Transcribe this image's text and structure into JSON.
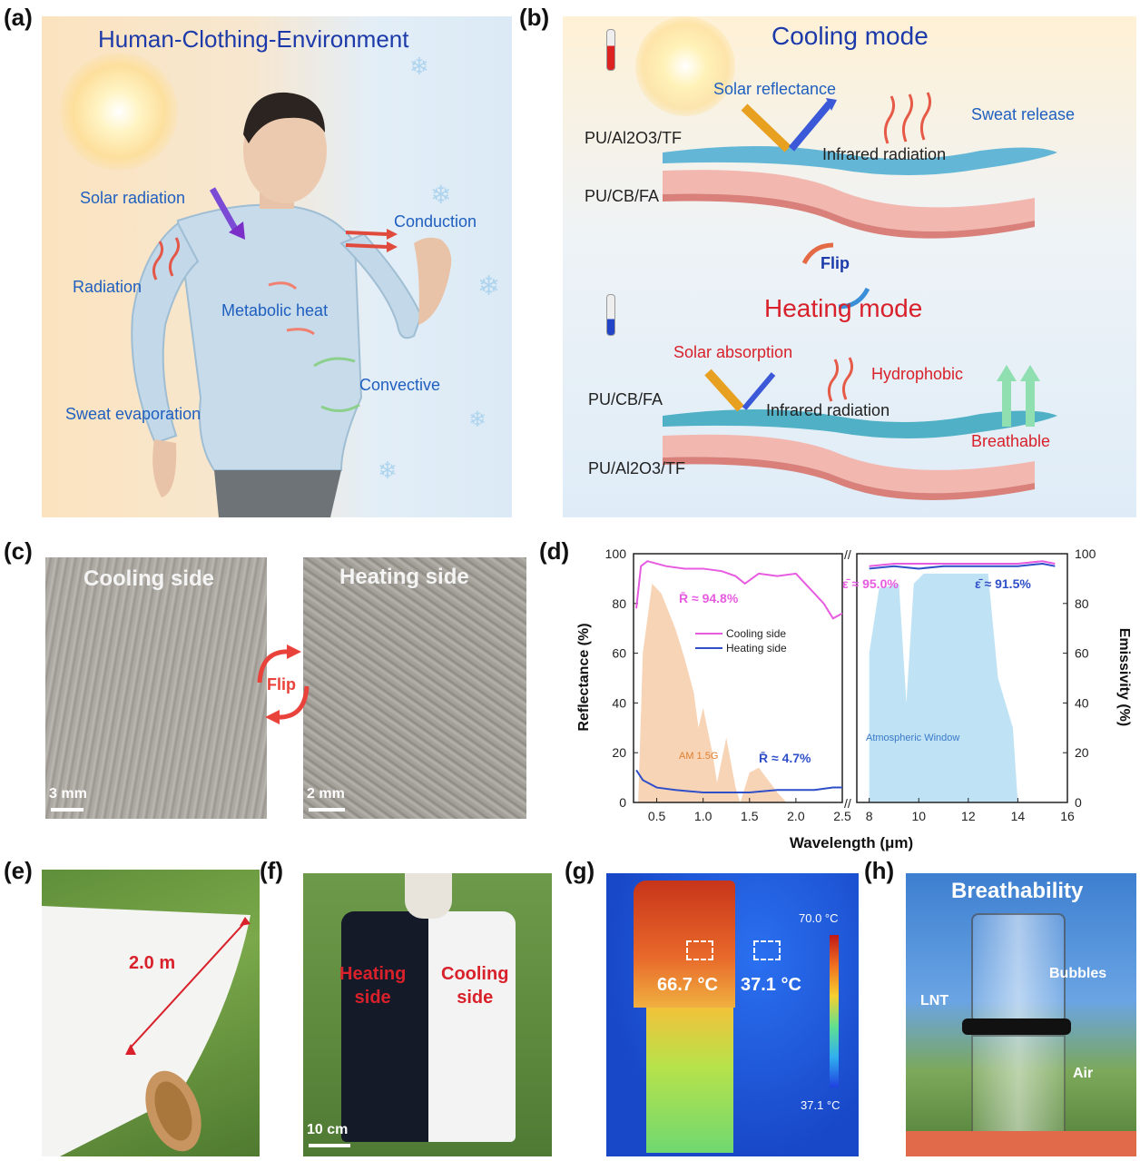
{
  "panels": {
    "a": {
      "letter": "(a)",
      "title": "Human-Clothing-Environment",
      "labels": {
        "solar": "Solar radiation",
        "conduction": "Conduction",
        "radiation": "Radiation",
        "metabolic": "Metabolic heat",
        "convective": "Convective",
        "sweat": "Sweat evaporation"
      }
    },
    "b": {
      "letter": "(b)",
      "cooling_title": "Cooling mode",
      "heating_title": "Heating mode",
      "flip": "Flip",
      "cooling": {
        "solar_reflectance": "Solar reflectance",
        "sweat_release": "Sweat release",
        "top_layer": "PU/Al2O3/TF",
        "bottom_layer": "PU/CB/FA",
        "ir": "Infrared radiation"
      },
      "heating": {
        "solar_absorption": "Solar absorption",
        "hydrophobic": "Hydrophobic",
        "top_layer": "PU/CB/FA",
        "bottom_layer": "PU/Al2O3/TF",
        "ir": "Infrared radiation",
        "breathable": "Breathable"
      }
    },
    "c": {
      "letter": "(c)",
      "cooling_side": "Cooling side",
      "heating_side": "Heating side",
      "flip": "Flip",
      "scale_left": "3 mm",
      "scale_right": "2 mm"
    },
    "e": {
      "letter": "(e)",
      "length": "2.0 m"
    },
    "f": {
      "letter": "(f)",
      "heating": "Heating\nside",
      "cooling": "Cooling\nside",
      "scale": "10 cm"
    },
    "g": {
      "letter": "(g)",
      "t_hot": "66.7 °C",
      "t_cold": "37.1 °C",
      "scale_max": "70.0 °C",
      "scale_min": "37.1 °C"
    },
    "h": {
      "letter": "(h)",
      "title": "Breathability",
      "lnt": "LNT",
      "bubbles": "Bubbles",
      "air": "Air"
    }
  },
  "chart_data": {
    "letter": "(d)",
    "type": "line",
    "xlabel": "Wavelength (μm)",
    "ylabel_left": "Reflectance (%)",
    "ylabel_right": "Emissivity (%)",
    "ylim": [
      0,
      100
    ],
    "yticks": [
      0,
      20,
      40,
      60,
      80,
      100
    ],
    "xticks_left": [
      "0.5",
      "1.0",
      "1.5",
      "2.0",
      "2.5"
    ],
    "xticks_right": [
      "8",
      "10",
      "12",
      "14",
      "16"
    ],
    "legend": [
      "Cooling side",
      "Heating side"
    ],
    "annotations": {
      "r_cool": "R̄ ≈ 94.8%",
      "r_heat": "R̄ ≈ 4.7%",
      "e_cool": "ε̄ ≈ 95.0%",
      "e_heat": "ε̄ ≈ 91.5%",
      "am": "AM 1.5G",
      "atm": "Atmospheric Window"
    },
    "colors": {
      "cooling": "#e75be0",
      "heating": "#2f4fc9",
      "am": "#f0a060",
      "atm": "#a9d9f1"
    },
    "series": [
      {
        "name": "Cooling side",
        "segment": "solar",
        "x": [
          0.28,
          0.33,
          0.4,
          0.5,
          0.6,
          0.8,
          1.0,
          1.2,
          1.35,
          1.45,
          1.6,
          1.8,
          2.0,
          2.2,
          2.3,
          2.4,
          2.5
        ],
        "values": [
          78,
          95,
          97,
          96,
          95,
          94,
          94,
          93,
          91,
          88,
          92,
          91,
          92,
          84,
          80,
          74,
          76
        ]
      },
      {
        "name": "Heating side",
        "segment": "solar",
        "x": [
          0.28,
          0.35,
          0.5,
          0.7,
          1.0,
          1.3,
          1.5,
          1.8,
          2.0,
          2.2,
          2.4,
          2.5
        ],
        "values": [
          13,
          9,
          6,
          5,
          4,
          4,
          4,
          5,
          5,
          5,
          6,
          6
        ]
      },
      {
        "name": "Cooling side",
        "segment": "ir",
        "x": [
          8,
          9,
          10,
          11,
          12,
          13,
          14,
          15,
          15.5
        ],
        "values": [
          95,
          96,
          96,
          96,
          96,
          96,
          96,
          97,
          96
        ]
      },
      {
        "name": "Heating side",
        "segment": "ir",
        "x": [
          8,
          9,
          10,
          11,
          12,
          13,
          14,
          15,
          15.5
        ],
        "values": [
          94,
          95,
          94,
          95,
          95,
          95,
          95,
          96,
          95
        ]
      }
    ]
  }
}
